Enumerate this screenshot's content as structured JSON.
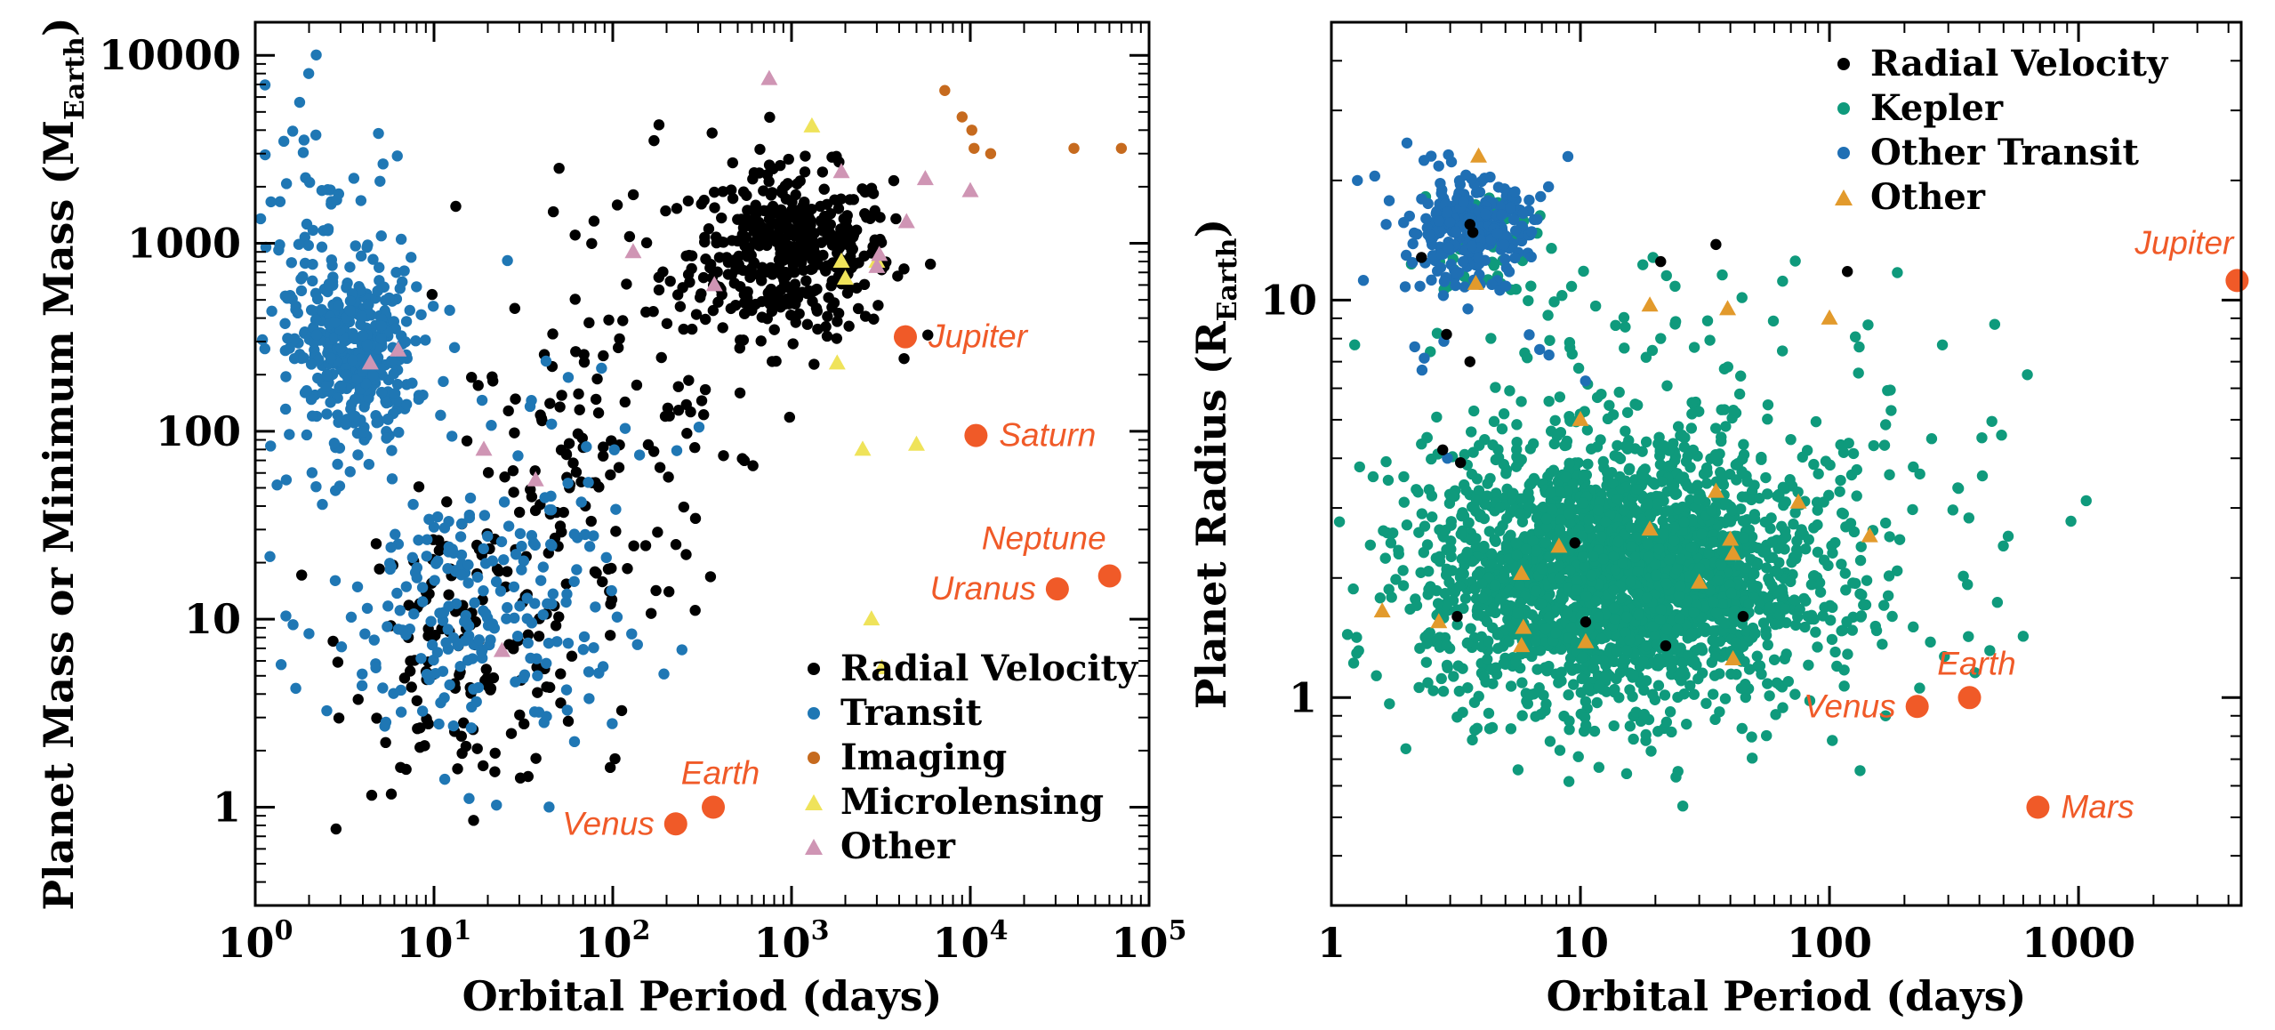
{
  "colors": {
    "radial_velocity": "#000000",
    "transit": "#1f77b4",
    "imaging": "#c66a1e",
    "microlensing": "#efe35a",
    "other_left": "#cf95b4",
    "kepler": "#0f9a7c",
    "other_transit": "#1f6fb4",
    "other_right": "#e29a2c",
    "solar_system": "#f05a28"
  },
  "chart_data": [
    {
      "type": "scatter",
      "xlabel": "Orbital Period (days)",
      "ylabel": "Planet Mass or Minimum Mass (M",
      "ylabel_sub": "Earth",
      "ylabel_close": ")",
      "xscale": "log",
      "yscale": "log",
      "xlim": [
        1,
        100000
      ],
      "ylim": [
        0.3,
        15000
      ],
      "x_ticks": [
        {
          "value": 1,
          "base": "10",
          "exp": "0"
        },
        {
          "value": 10,
          "base": "10",
          "exp": "1"
        },
        {
          "value": 100,
          "base": "10",
          "exp": "2"
        },
        {
          "value": 1000,
          "base": "10",
          "exp": "3"
        },
        {
          "value": 10000,
          "base": "10",
          "exp": "4"
        },
        {
          "value": 100000,
          "base": "10",
          "exp": "5"
        }
      ],
      "y_ticks": [
        {
          "value": 1,
          "label": "1"
        },
        {
          "value": 10,
          "label": "10"
        },
        {
          "value": 100,
          "label": "100"
        },
        {
          "value": 1000,
          "label": "1000"
        },
        {
          "value": 10000,
          "label": "10000"
        }
      ],
      "legend_position": "bottom-right",
      "legend": [
        {
          "label": "Radial Velocity",
          "marker": "circle",
          "color_key": "radial_velocity"
        },
        {
          "label": "Transit",
          "marker": "circle",
          "color_key": "transit"
        },
        {
          "label": "Imaging",
          "marker": "circle",
          "color_key": "imaging"
        },
        {
          "label": "Microlensing",
          "marker": "triangle",
          "color_key": "microlensing"
        },
        {
          "label": "Other",
          "marker": "triangle",
          "color_key": "other_left"
        }
      ],
      "solar_system": [
        {
          "name": "Jupiter",
          "period": 4333,
          "value": 318,
          "label_side": "right"
        },
        {
          "name": "Saturn",
          "period": 10759,
          "value": 95,
          "label_side": "right"
        },
        {
          "name": "Neptune",
          "period": 60190,
          "value": 17,
          "label_side": "above-left"
        },
        {
          "name": "Uranus",
          "period": 30687,
          "value": 14.5,
          "label_side": "left"
        },
        {
          "name": "Earth",
          "period": 365,
          "value": 1,
          "label_side": "above"
        },
        {
          "name": "Venus",
          "period": 225,
          "value": 0.815,
          "label_side": "left"
        }
      ],
      "series": [
        {
          "name": "Radial Velocity",
          "marker": "circle",
          "color_key": "radial_velocity",
          "clusters": [
            {
              "lx": 3.0,
              "ly": 2.95,
              "sx": 0.28,
              "sy": 0.22,
              "n": 420
            },
            {
              "lx": 1.2,
              "ly": 0.85,
              "sx": 0.33,
              "sy": 0.38,
              "n": 140
            },
            {
              "lx": 1.8,
              "ly": 1.6,
              "sx": 0.35,
              "sy": 0.6,
              "n": 90
            },
            {
              "lx": 2.3,
              "ly": 2.6,
              "sx": 0.45,
              "sy": 0.55,
              "n": 80
            }
          ]
        },
        {
          "name": "Transit",
          "marker": "circle",
          "color_key": "transit",
          "clusters": [
            {
              "lx": 0.55,
              "ly": 2.4,
              "sx": 0.17,
              "sy": 0.22,
              "n": 330
            },
            {
              "lx": 0.4,
              "ly": 2.8,
              "sx": 0.25,
              "sy": 0.5,
              "n": 110
            },
            {
              "lx": 1.2,
              "ly": 1.0,
              "sx": 0.4,
              "sy": 0.4,
              "n": 210
            },
            {
              "lx": 1.6,
              "ly": 1.6,
              "sx": 0.4,
              "sy": 0.5,
              "n": 40
            }
          ]
        },
        {
          "name": "Imaging",
          "marker": "circle",
          "color_key": "imaging",
          "points": [
            [
              7200,
              6500
            ],
            [
              9000,
              4700
            ],
            [
              10500,
              3200
            ],
            [
              38000,
              3200
            ],
            [
              70000,
              3200
            ],
            [
              10200,
              4000
            ],
            [
              13000,
              3000
            ]
          ]
        },
        {
          "name": "Microlensing",
          "marker": "triangle",
          "color_key": "microlensing",
          "points": [
            [
              1300,
              4200
            ],
            [
              1900,
              800
            ],
            [
              1800,
              230
            ],
            [
              2500,
              80
            ],
            [
              5000,
              85
            ],
            [
              2800,
              10
            ],
            [
              3200,
              5.5
            ],
            [
              2000,
              650
            ],
            [
              3000,
              800
            ]
          ]
        },
        {
          "name": "Other",
          "marker": "triangle",
          "color_key": "other_left",
          "points": [
            [
              750,
              7500
            ],
            [
              1900,
              2400
            ],
            [
              5600,
              2200
            ],
            [
              10000,
              1900
            ],
            [
              4400,
              1300
            ],
            [
              3000,
              750
            ],
            [
              3100,
              870
            ],
            [
              370,
              600
            ],
            [
              130,
              900
            ],
            [
              6.3,
              270
            ],
            [
              4.4,
              230
            ],
            [
              19,
              80
            ],
            [
              37,
              55
            ],
            [
              24,
              6.8
            ]
          ]
        }
      ]
    },
    {
      "type": "scatter",
      "xlabel": "Orbital Period (days)",
      "ylabel": "Planet Radius (R",
      "ylabel_sub": "Earth",
      "ylabel_close": ")",
      "xscale": "log",
      "yscale": "log",
      "xlim": [
        1,
        4500
      ],
      "ylim": [
        0.3,
        50
      ],
      "x_ticks": [
        {
          "value": 1,
          "label": "1"
        },
        {
          "value": 10,
          "label": "10"
        },
        {
          "value": 100,
          "label": "100"
        },
        {
          "value": 1000,
          "label": "1000"
        }
      ],
      "y_ticks": [
        {
          "value": 1,
          "label": "1"
        },
        {
          "value": 10,
          "label": "10"
        }
      ],
      "legend_position": "top-right",
      "legend": [
        {
          "label": "Radial Velocity",
          "marker": "circle",
          "color_key": "radial_velocity"
        },
        {
          "label": "Kepler",
          "marker": "circle",
          "color_key": "kepler"
        },
        {
          "label": "Other Transit",
          "marker": "circle",
          "color_key": "other_transit"
        },
        {
          "label": "Other",
          "marker": "triangle",
          "color_key": "other_right"
        }
      ],
      "solar_system": [
        {
          "name": "Jupiter",
          "period": 4333,
          "value": 11.2,
          "label_side": "above-left"
        },
        {
          "name": "Earth",
          "period": 365,
          "value": 1.0,
          "label_side": "above"
        },
        {
          "name": "Venus",
          "period": 225,
          "value": 0.95,
          "label_side": "left"
        },
        {
          "name": "Mars",
          "period": 687,
          "value": 0.53,
          "label_side": "right"
        }
      ],
      "series": [
        {
          "name": "Kepler",
          "marker": "circle",
          "color_key": "kepler",
          "clusters": [
            {
              "lx": 1.15,
              "ly": 0.3,
              "sx": 0.38,
              "sy": 0.16,
              "n": 2200
            },
            {
              "lx": 1.3,
              "ly": 0.55,
              "sx": 0.55,
              "sy": 0.28,
              "n": 260
            },
            {
              "lx": 2.1,
              "ly": 0.5,
              "sx": 0.45,
              "sy": 0.2,
              "n": 60
            },
            {
              "lx": 0.6,
              "ly": 1.15,
              "sx": 0.12,
              "sy": 0.07,
              "n": 50
            }
          ]
        },
        {
          "name": "Other Transit",
          "marker": "circle",
          "color_key": "other_transit",
          "clusters": [
            {
              "lx": 0.55,
              "ly": 1.18,
              "sx": 0.12,
              "sy": 0.06,
              "n": 260
            },
            {
              "lx": 0.55,
              "ly": 1.1,
              "sx": 0.25,
              "sy": 0.15,
              "n": 40
            }
          ]
        },
        {
          "name": "Radial Velocity",
          "marker": "circle",
          "color_key": "radial_velocity",
          "points": [
            [
              3.6,
              15.5
            ],
            [
              2.3,
              12.8
            ],
            [
              2.9,
              8.2
            ],
            [
              3.6,
              7.0
            ],
            [
              2.8,
              4.2
            ],
            [
              3.3,
              3.9
            ],
            [
              9.5,
              2.45
            ],
            [
              21,
              12.5
            ],
            [
              35,
              13.8
            ],
            [
              118,
              11.8
            ],
            [
              3.2,
              1.6
            ],
            [
              10.5,
              1.55
            ],
            [
              22,
              1.35
            ],
            [
              45,
              1.6
            ],
            [
              3.7,
              14.8
            ]
          ]
        },
        {
          "name": "Other",
          "marker": "triangle",
          "color_key": "other_right",
          "points": [
            [
              3.9,
              23
            ],
            [
              3.8,
              11
            ],
            [
              19,
              9.7
            ],
            [
              39,
              9.5
            ],
            [
              100,
              9.0
            ],
            [
              10,
              5.0
            ],
            [
              35,
              3.3
            ],
            [
              75,
              3.1
            ],
            [
              19,
              2.65
            ],
            [
              40,
              2.5
            ],
            [
              8.2,
              2.4
            ],
            [
              145,
              2.55
            ],
            [
              5.8,
              2.05
            ],
            [
              41,
              2.3
            ],
            [
              30,
              1.95
            ],
            [
              1.6,
              1.65
            ],
            [
              2.7,
              1.55
            ],
            [
              5.9,
              1.5
            ],
            [
              5.8,
              1.35
            ],
            [
              10.5,
              1.38
            ],
            [
              41,
              1.25
            ]
          ]
        }
      ]
    }
  ]
}
